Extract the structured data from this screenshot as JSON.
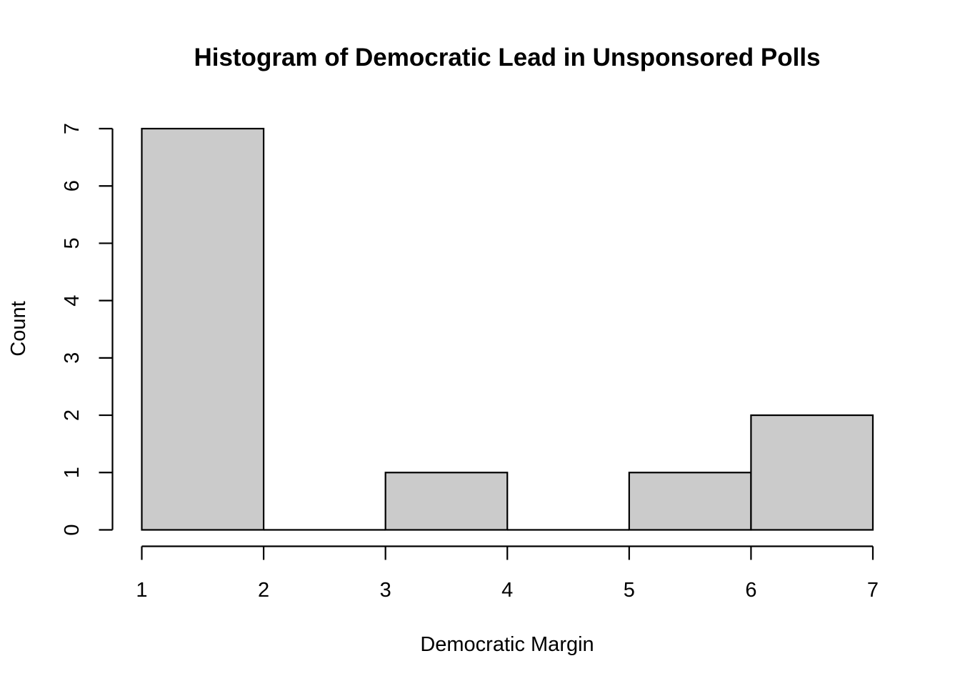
{
  "chart_data": {
    "type": "bar",
    "title": "Histogram of Democratic Lead in Unsponsored Polls",
    "xlabel": "Democratic Margin",
    "ylabel": "Count",
    "bins": [
      {
        "start": 1,
        "end": 2,
        "count": 7
      },
      {
        "start": 2,
        "end": 3,
        "count": 0
      },
      {
        "start": 3,
        "end": 4,
        "count": 1
      },
      {
        "start": 4,
        "end": 5,
        "count": 0
      },
      {
        "start": 5,
        "end": 6,
        "count": 1
      },
      {
        "start": 6,
        "end": 7,
        "count": 2
      }
    ],
    "xlim": [
      1,
      7
    ],
    "ylim": [
      0,
      7
    ],
    "x_ticks": [
      1,
      2,
      3,
      4,
      5,
      6,
      7
    ],
    "y_ticks": [
      0,
      1,
      2,
      3,
      4,
      5,
      6,
      7
    ],
    "bar_color": "#cbcbcb",
    "grid": false,
    "legend": "none"
  }
}
